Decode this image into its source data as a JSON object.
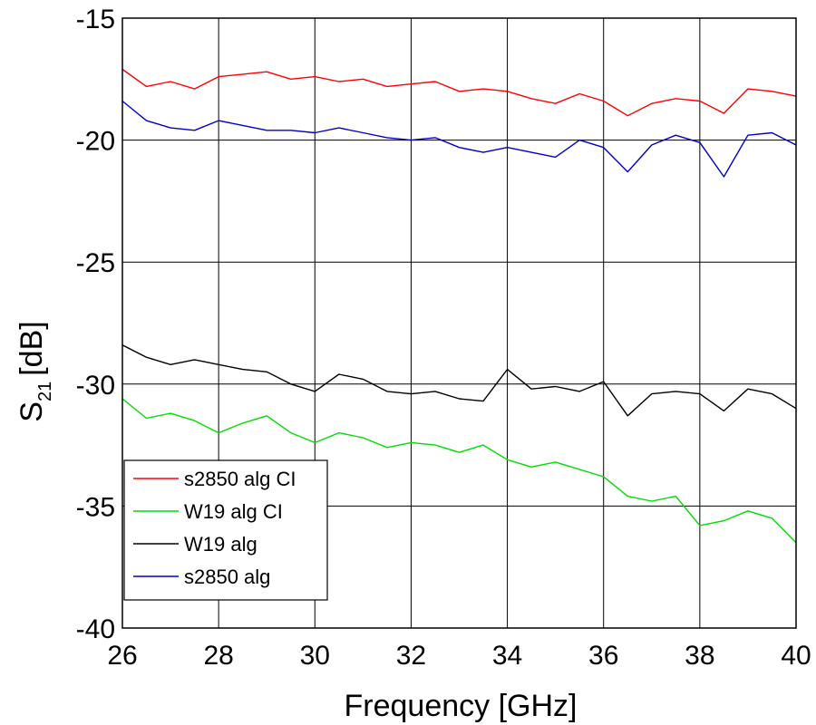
{
  "chart_data": {
    "type": "line",
    "title": "",
    "xlabel": "Frequency [GHz]",
    "ylabel_main": "S",
    "ylabel_sub": "21",
    "ylabel_unit": "[dB]",
    "xlim": [
      26,
      40
    ],
    "ylim": [
      -40,
      -15
    ],
    "xticks": [
      26,
      28,
      30,
      32,
      34,
      36,
      38,
      40
    ],
    "yticks": [
      -40,
      -35,
      -30,
      -25,
      -20,
      -15
    ],
    "grid": true,
    "legend_position": "bottom-left",
    "x": [
      26.0,
      26.5,
      27.0,
      27.5,
      28.0,
      28.5,
      29.0,
      29.5,
      30.0,
      30.5,
      31.0,
      31.5,
      32.0,
      32.5,
      33.0,
      33.5,
      34.0,
      34.5,
      35.0,
      35.5,
      36.0,
      36.5,
      37.0,
      37.5,
      38.0,
      38.5,
      39.0,
      39.5,
      40.0
    ],
    "series": [
      {
        "name": "s2850 alg CI",
        "color": "#ff0000",
        "values": [
          -17.1,
          -17.8,
          -17.6,
          -17.9,
          -17.4,
          -17.3,
          -17.2,
          -17.5,
          -17.4,
          -17.6,
          -17.5,
          -17.8,
          -17.7,
          -17.6,
          -18.0,
          -17.9,
          -18.0,
          -18.3,
          -18.5,
          -18.1,
          -18.4,
          -19.0,
          -18.5,
          -18.3,
          -18.4,
          -18.9,
          -17.9,
          -18.0,
          -18.2
        ]
      },
      {
        "name": "W19 alg CI",
        "color": "#00dd00",
        "values": [
          -30.6,
          -31.4,
          -31.2,
          -31.5,
          -32.0,
          -31.6,
          -31.3,
          -32.0,
          -32.4,
          -32.0,
          -32.2,
          -32.6,
          -32.4,
          -32.5,
          -32.8,
          -32.5,
          -33.1,
          -33.4,
          -33.2,
          -33.5,
          -33.8,
          -34.6,
          -34.8,
          -34.6,
          -35.8,
          -35.6,
          -35.2,
          -35.5,
          -36.5
        ]
      },
      {
        "name": "W19 alg",
        "color": "#000000",
        "values": [
          -28.4,
          -28.9,
          -29.2,
          -29.0,
          -29.2,
          -29.4,
          -29.5,
          -30.0,
          -30.3,
          -29.6,
          -29.8,
          -30.3,
          -30.4,
          -30.3,
          -30.6,
          -30.7,
          -29.4,
          -30.2,
          -30.1,
          -30.3,
          -29.9,
          -31.3,
          -30.4,
          -30.3,
          -30.4,
          -31.1,
          -30.2,
          -30.4,
          -31.0
        ]
      },
      {
        "name": "s2850 alg",
        "color": "#0000cc",
        "values": [
          -18.4,
          -19.2,
          -19.5,
          -19.6,
          -19.2,
          -19.4,
          -19.6,
          -19.6,
          -19.7,
          -19.5,
          -19.7,
          -19.9,
          -20.0,
          -19.9,
          -20.3,
          -20.5,
          -20.3,
          -20.5,
          -20.7,
          -20.0,
          -20.3,
          -21.3,
          -20.2,
          -19.8,
          -20.1,
          -21.5,
          -19.8,
          -19.7,
          -20.2
        ]
      }
    ]
  }
}
